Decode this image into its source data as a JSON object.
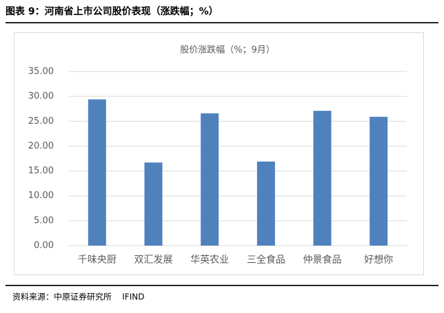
{
  "header": {
    "title": "图表 9：河南省上市公司股价表现（涨跌幅；%）"
  },
  "chart_data": {
    "type": "bar",
    "title": "股价涨跌幅（%；9月）",
    "categories": [
      "千味央厨",
      "双汇发展",
      "华英农业",
      "三全食品",
      "仲景食品",
      "好想你"
    ],
    "values": [
      29.4,
      16.7,
      26.6,
      16.9,
      27.1,
      25.9
    ],
    "color": "#4f81bd",
    "ylim": [
      0,
      35
    ],
    "yticks": [
      {
        "value": 0,
        "label": "0.00"
      },
      {
        "value": 5,
        "label": "5.00"
      },
      {
        "value": 10,
        "label": "10.00"
      },
      {
        "value": 15,
        "label": "15.00"
      },
      {
        "value": 20,
        "label": "20.00"
      },
      {
        "value": 25,
        "label": "25.00"
      },
      {
        "value": 30,
        "label": "30.00"
      },
      {
        "value": 35,
        "label": "35.00"
      }
    ],
    "grid": true
  },
  "footer": {
    "source": "资料来源：中原证券研究所    IFIND"
  }
}
